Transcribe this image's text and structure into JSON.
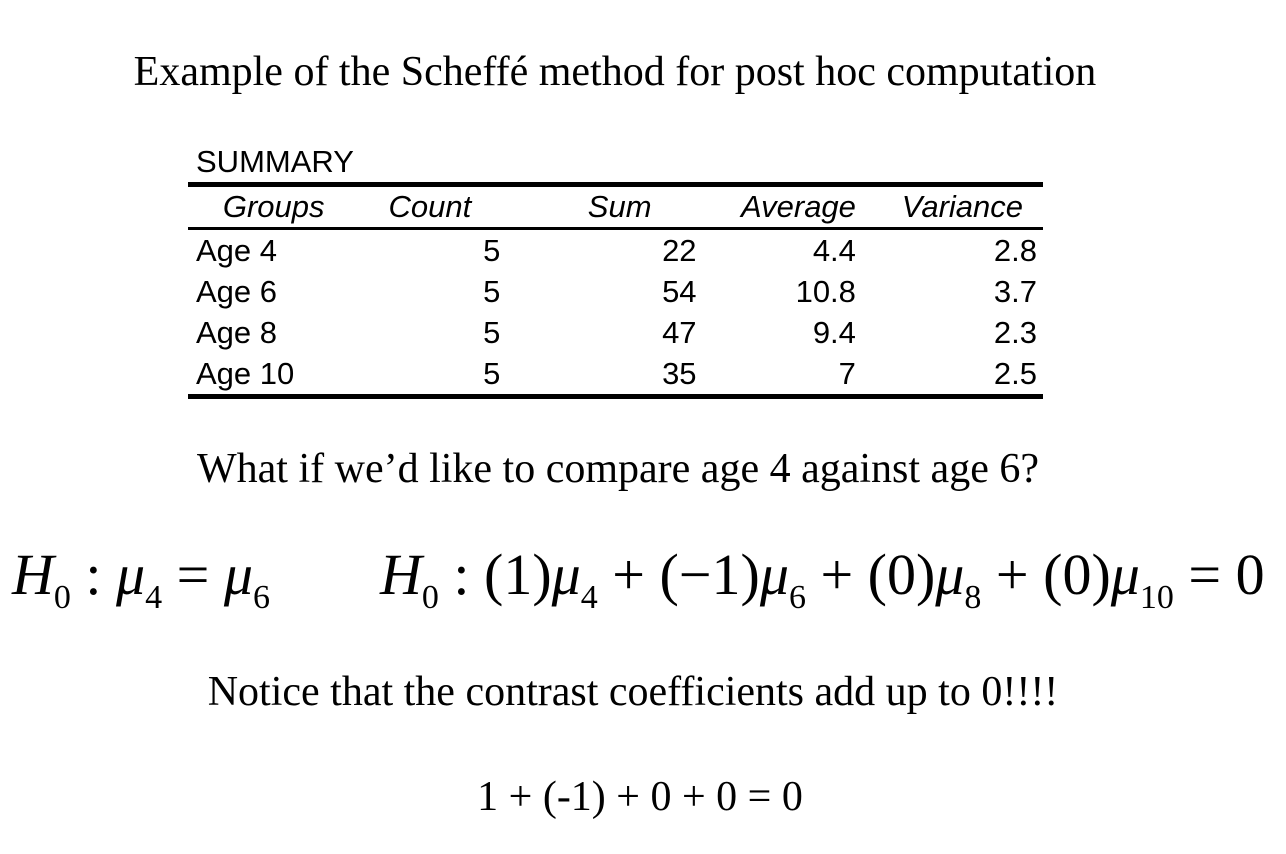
{
  "title": "Example of the Scheffé method for post hoc computation",
  "summary": {
    "label": "SUMMARY",
    "columns": [
      "Groups",
      "Count",
      "Sum",
      "Average",
      "Variance"
    ],
    "rows": [
      {
        "group": "Age 4",
        "count": "5",
        "sum": "22",
        "average": "4.4",
        "variance": "2.8"
      },
      {
        "group": "Age 6",
        "count": "5",
        "sum": "54",
        "average": "10.8",
        "variance": "3.7"
      },
      {
        "group": "Age 8",
        "count": "5",
        "sum": "47",
        "average": "9.4",
        "variance": "2.3"
      },
      {
        "group": "Age 10",
        "count": "5",
        "sum": "35",
        "average": "7",
        "variance": "2.5"
      }
    ]
  },
  "question": "What if we’d like to compare age 4 against age 6?",
  "equations": {
    "left": {
      "h": "H",
      "h_sub": "0",
      "colon": " : ",
      "mu": "μ",
      "a_sub": "4",
      "eq": " = ",
      "b_sub": "6"
    },
    "right": {
      "h": "H",
      "h_sub": "0",
      "c1": " : (1)",
      "s1": "4",
      "c2": " + (−1)",
      "s2": "6",
      "c3": " + (0)",
      "s3": "8",
      "c4": " + (0)",
      "s4": "10",
      "tail": " = 0"
    }
  },
  "notice": "Notice that the contrast coefficients add up to 0!!!!",
  "sum_equation": "1 + (-1) + 0 + 0 = 0"
}
